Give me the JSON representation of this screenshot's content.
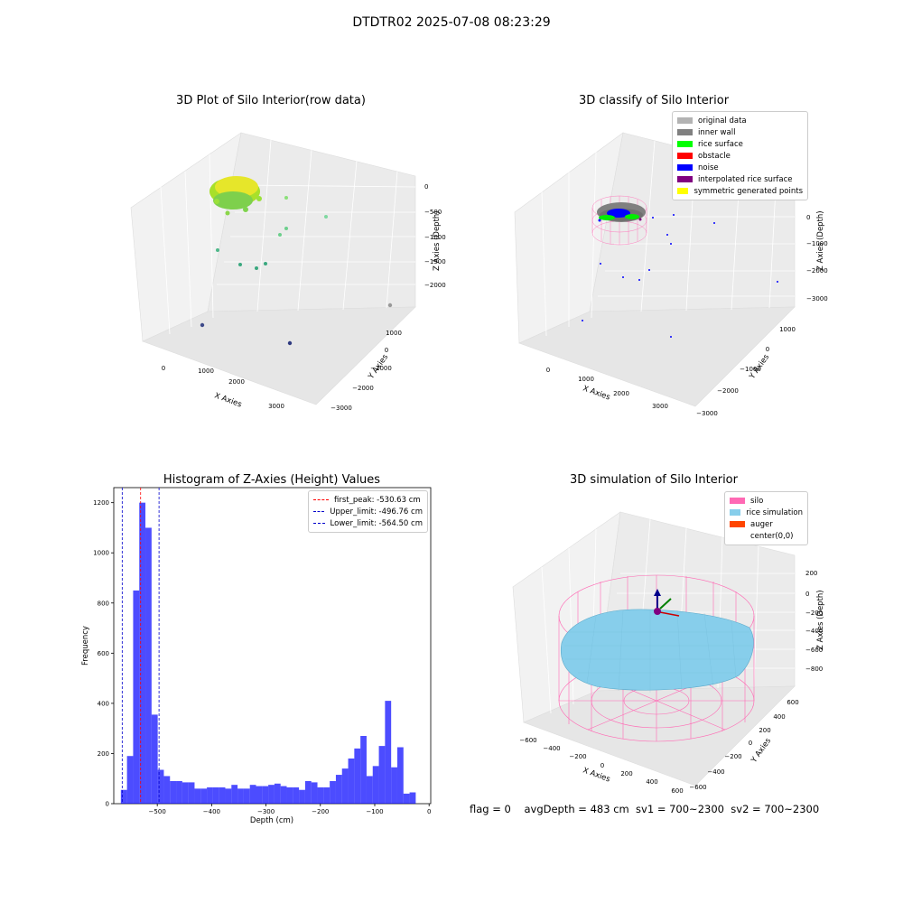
{
  "title": "DTDTR02 2025-07-08 08:23:29",
  "footer": "flag = 0    avgDepth = 483 cm  sv1 = 700~2300  sv2 = 700~2300",
  "panels": {
    "raw": {
      "title": "3D Plot of Silo Interior(row data)",
      "xlabel": "X Axies",
      "ylabel": "Y Axies",
      "zlabel": "Z Axies (Depth)",
      "xticks": [
        "0",
        "1000",
        "2000",
        "3000"
      ],
      "yticks": [
        "1000",
        "0",
        "−1000",
        "−2000",
        "−3000"
      ],
      "zticks": [
        "0",
        "−500",
        "−1000",
        "−1500",
        "−2000"
      ]
    },
    "classify": {
      "title": "3D classify of Silo Interior",
      "xlabel": "X Axies",
      "ylabel": "Y Axies",
      "zlabel": "Z Axies (Depth)",
      "xticks": [
        "0",
        "1000",
        "2000",
        "3000"
      ],
      "yticks": [
        "1000",
        "0",
        "−1000",
        "−2000",
        "−3000"
      ],
      "zticks": [
        "0",
        "−1000",
        "−2000",
        "−3000"
      ],
      "ztick_partial": "000",
      "legend": [
        {
          "label": "original data",
          "color": "#b3b3b3"
        },
        {
          "label": "inner wall",
          "color": "#808080"
        },
        {
          "label": "rice surface",
          "color": "#00ff00"
        },
        {
          "label": "obstacle",
          "color": "#ff0000"
        },
        {
          "label": "noise",
          "color": "#0000ff"
        },
        {
          "label": "interpolated rice surface",
          "color": "#800080"
        },
        {
          "label": "symmetric generated points",
          "color": "#ffff00"
        }
      ]
    },
    "simulation": {
      "title": "3D simulation of Silo Interior",
      "xlabel": "X Axies",
      "ylabel": "Y Axies",
      "zlabel": "Z Axies (Depth)",
      "xticks": [
        "−600",
        "−400",
        "−200",
        "0",
        "200",
        "400",
        "600"
      ],
      "yticks": [
        "600",
        "400",
        "200",
        "0",
        "−200",
        "−400",
        "−600"
      ],
      "zticks": [
        "200",
        "0",
        "−200",
        "−400",
        "−600",
        "−800"
      ],
      "legend": [
        {
          "label": "silo",
          "color": "#ff69b4"
        },
        {
          "label": "rice simulation",
          "color": "#87ceeb"
        },
        {
          "label": "auger",
          "color": "#ff4500"
        },
        {
          "label": "center(0,0)",
          "color": ""
        }
      ]
    }
  },
  "chart_data": {
    "type": "bar",
    "title": "Histogram of Z-Axies (Height) Values",
    "xlabel": "Depth (cm)",
    "ylabel": "Frequency",
    "xlim": [
      -580,
      3
    ],
    "ylim": [
      0,
      1260
    ],
    "xticks": [
      -500,
      -400,
      -300,
      -200,
      -100,
      0
    ],
    "yticks": [
      0,
      200,
      400,
      600,
      800,
      1000,
      1200
    ],
    "bin_width": 11.3,
    "bin_start": -567,
    "values": [
      55,
      190,
      850,
      1200,
      1100,
      355,
      135,
      110,
      90,
      90,
      85,
      85,
      60,
      60,
      65,
      65,
      65,
      60,
      75,
      60,
      60,
      75,
      70,
      70,
      75,
      80,
      70,
      65,
      65,
      55,
      90,
      85,
      65,
      65,
      90,
      115,
      140,
      180,
      220,
      270,
      110,
      150,
      230,
      410,
      145,
      225,
      40,
      45
    ],
    "bar_color": "#0000ff",
    "bar_alpha": 0.7,
    "lines": [
      {
        "label": "first_peak: -530.63 cm",
        "x": -530.63,
        "color": "#ff0000"
      },
      {
        "label": "Upper_limit: -496.76 cm",
        "x": -496.76,
        "color": "#0000cc"
      },
      {
        "label": "Lower_limit: -564.50 cm",
        "x": -564.5,
        "color": "#0000cc"
      }
    ],
    "legend_position": "upper right"
  }
}
